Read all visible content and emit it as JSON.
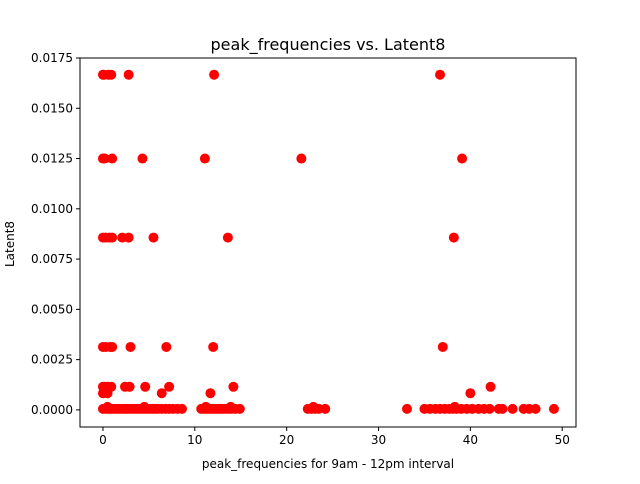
{
  "chart_data": {
    "type": "scatter",
    "title": "peak_frequencies vs. Latent8",
    "xlabel": "peak_frequencies for 9am - 12pm interval",
    "ylabel": "Latent8",
    "xlim": [
      -2.5,
      51.5
    ],
    "ylim": [
      -0.00085,
      0.0175
    ],
    "xticks": [
      0,
      10,
      20,
      30,
      40,
      50
    ],
    "xtick_labels": [
      "0",
      "10",
      "20",
      "30",
      "40",
      "50"
    ],
    "yticks": [
      0.0,
      0.0025,
      0.005,
      0.0075,
      0.01,
      0.0125,
      0.015,
      0.0175
    ],
    "ytick_labels": [
      "0.0000",
      "0.0025",
      "0.0050",
      "0.0075",
      "0.0100",
      "0.0125",
      "0.0150",
      "0.0175"
    ],
    "grid": false,
    "legend": "none",
    "marker_color": "#ff0000",
    "series": [
      {
        "points": [
          [
            0.0,
            0.01667
          ],
          [
            0.1,
            0.01667
          ],
          [
            0.6,
            0.01667
          ],
          [
            0.9,
            0.01667
          ],
          [
            2.8,
            0.01667
          ],
          [
            12.1,
            0.01667
          ],
          [
            36.7,
            0.01667
          ],
          [
            0.0,
            0.0125
          ],
          [
            0.2,
            0.0125
          ],
          [
            1.0,
            0.0125
          ],
          [
            4.3,
            0.0125
          ],
          [
            11.1,
            0.0125
          ],
          [
            21.6,
            0.0125
          ],
          [
            39.1,
            0.0125
          ],
          [
            0.0,
            0.00857
          ],
          [
            0.3,
            0.00857
          ],
          [
            0.7,
            0.00857
          ],
          [
            1.0,
            0.00857
          ],
          [
            2.1,
            0.00857
          ],
          [
            2.8,
            0.00857
          ],
          [
            5.5,
            0.00857
          ],
          [
            13.6,
            0.00857
          ],
          [
            38.2,
            0.00857
          ],
          [
            0.0,
            0.00313
          ],
          [
            0.3,
            0.00313
          ],
          [
            0.8,
            0.00313
          ],
          [
            1.0,
            0.00313
          ],
          [
            3.0,
            0.00313
          ],
          [
            6.9,
            0.00313
          ],
          [
            12.0,
            0.00313
          ],
          [
            37.0,
            0.00313
          ],
          [
            0.0,
            0.00115
          ],
          [
            0.2,
            0.00115
          ],
          [
            0.5,
            0.00115
          ],
          [
            0.9,
            0.00115
          ],
          [
            2.4,
            0.00115
          ],
          [
            2.9,
            0.00115
          ],
          [
            4.6,
            0.00115
          ],
          [
            7.2,
            0.00115
          ],
          [
            14.2,
            0.00115
          ],
          [
            42.2,
            0.00115
          ],
          [
            0.0,
            0.00083
          ],
          [
            0.5,
            0.00083
          ],
          [
            6.4,
            0.00083
          ],
          [
            11.7,
            0.00083
          ],
          [
            40.0,
            0.00083
          ],
          [
            0.0,
            5e-05
          ],
          [
            0.3,
            5e-05
          ],
          [
            0.6,
            5e-05
          ],
          [
            0.9,
            5e-05
          ],
          [
            1.2,
            5e-05
          ],
          [
            1.5,
            5e-05
          ],
          [
            1.8,
            5e-05
          ],
          [
            2.1,
            5e-05
          ],
          [
            2.4,
            5e-05
          ],
          [
            2.7,
            5e-05
          ],
          [
            3.0,
            5e-05
          ],
          [
            3.3,
            5e-05
          ],
          [
            3.6,
            5e-05
          ],
          [
            3.9,
            5e-05
          ],
          [
            4.2,
            5e-05
          ],
          [
            4.5,
            5e-05
          ],
          [
            4.8,
            5e-05
          ],
          [
            5.1,
            5e-05
          ],
          [
            5.4,
            5e-05
          ],
          [
            5.7,
            5e-05
          ],
          [
            6.0,
            5e-05
          ],
          [
            6.4,
            5e-05
          ],
          [
            6.8,
            5e-05
          ],
          [
            7.2,
            5e-05
          ],
          [
            7.6,
            5e-05
          ],
          [
            8.1,
            5e-05
          ],
          [
            8.6,
            5e-05
          ],
          [
            10.7,
            5e-05
          ],
          [
            11.0,
            5e-05
          ],
          [
            11.3,
            5e-05
          ],
          [
            11.6,
            5e-05
          ],
          [
            11.9,
            5e-05
          ],
          [
            12.2,
            5e-05
          ],
          [
            12.5,
            5e-05
          ],
          [
            12.8,
            5e-05
          ],
          [
            13.1,
            5e-05
          ],
          [
            13.4,
            5e-05
          ],
          [
            13.7,
            5e-05
          ],
          [
            14.0,
            5e-05
          ],
          [
            14.4,
            5e-05
          ],
          [
            14.9,
            5e-05
          ],
          [
            22.3,
            5e-05
          ],
          [
            22.7,
            5e-05
          ],
          [
            23.1,
            5e-05
          ],
          [
            23.5,
            5e-05
          ],
          [
            24.2,
            5e-05
          ],
          [
            33.1,
            5e-05
          ],
          [
            35.0,
            5e-05
          ],
          [
            35.6,
            5e-05
          ],
          [
            36.2,
            5e-05
          ],
          [
            36.7,
            5e-05
          ],
          [
            37.2,
            5e-05
          ],
          [
            37.7,
            5e-05
          ],
          [
            38.1,
            5e-05
          ],
          [
            38.5,
            5e-05
          ],
          [
            39.0,
            5e-05
          ],
          [
            39.6,
            5e-05
          ],
          [
            40.2,
            5e-05
          ],
          [
            40.9,
            5e-05
          ],
          [
            41.5,
            5e-05
          ],
          [
            42.1,
            5e-05
          ],
          [
            43.1,
            5e-05
          ],
          [
            43.5,
            5e-05
          ],
          [
            44.6,
            5e-05
          ],
          [
            45.8,
            5e-05
          ],
          [
            46.4,
            5e-05
          ],
          [
            47.1,
            5e-05
          ],
          [
            49.1,
            5e-05
          ],
          [
            0.5,
            0.00015
          ],
          [
            4.5,
            0.00015
          ],
          [
            11.2,
            0.00015
          ],
          [
            13.9,
            0.00015
          ],
          [
            22.9,
            0.00015
          ],
          [
            38.3,
            0.00015
          ]
        ]
      }
    ]
  }
}
